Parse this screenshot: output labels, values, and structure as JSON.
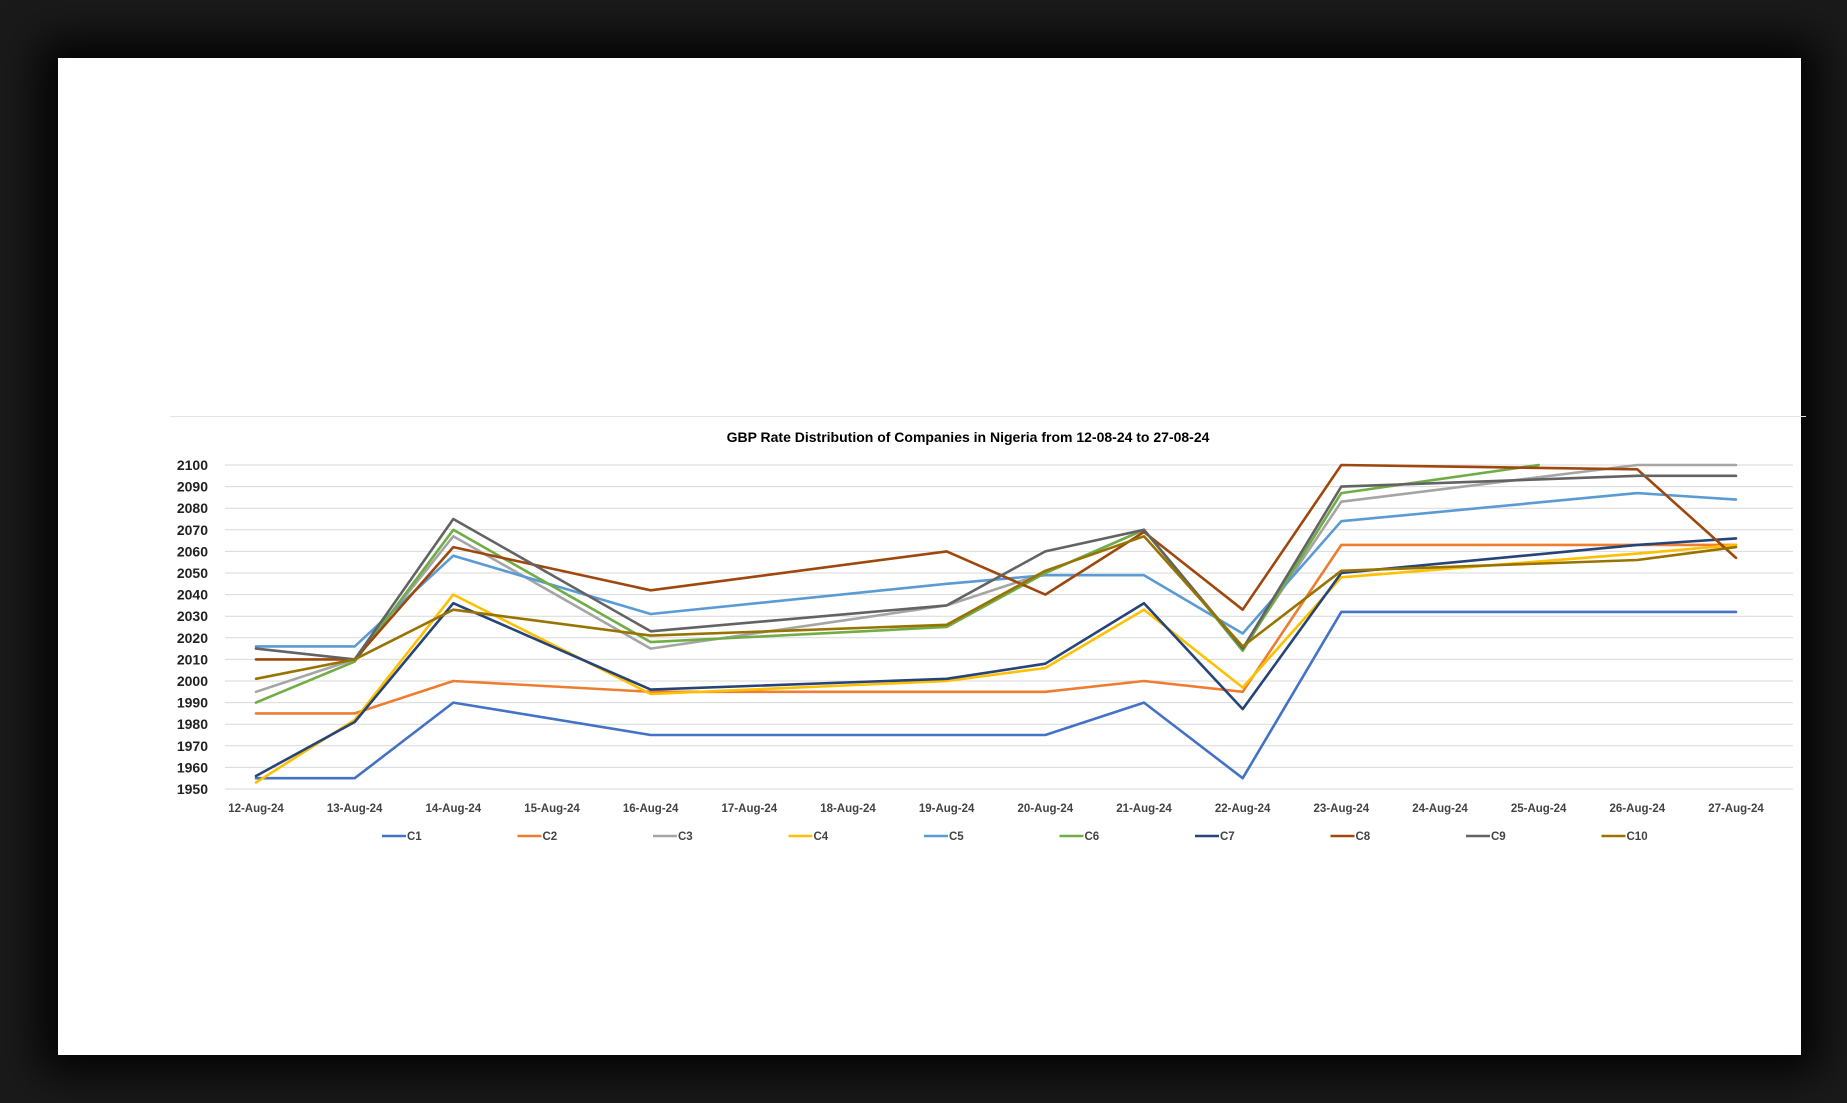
{
  "chart_data": {
    "type": "line",
    "title": "GBP Rate Distribution of Companies in Nigeria from 12-08-24 to 27-08-24",
    "xlabel": "",
    "ylabel": "",
    "ylim": [
      1950,
      2100
    ],
    "yticks": [
      1950,
      1960,
      1970,
      1980,
      1990,
      2000,
      2010,
      2020,
      2030,
      2040,
      2050,
      2060,
      2070,
      2080,
      2090,
      2100
    ],
    "grid": true,
    "legend_position": "bottom",
    "categories": [
      "12-Aug-24",
      "13-Aug-24",
      "14-Aug-24",
      "15-Aug-24",
      "16-Aug-24",
      "17-Aug-24",
      "18-Aug-24",
      "19-Aug-24",
      "20-Aug-24",
      "21-Aug-24",
      "22-Aug-24",
      "23-Aug-24",
      "24-Aug-24",
      "25-Aug-24",
      "26-Aug-24",
      "27-Aug-24"
    ],
    "series": [
      {
        "name": "C1",
        "color": "#4472C4",
        "values": [
          1955,
          1955,
          1990,
          null,
          1975,
          null,
          null,
          1975,
          1975,
          1990,
          1955,
          2032,
          null,
          null,
          null,
          2032
        ]
      },
      {
        "name": "C2",
        "color": "#ED7D31",
        "values": [
          1985,
          1985,
          2000,
          null,
          1995,
          null,
          null,
          1995,
          1995,
          2000,
          1995,
          2063,
          null,
          null,
          null,
          2063
        ]
      },
      {
        "name": "C3",
        "color": "#A5A5A5",
        "values": [
          1995,
          2010,
          2067,
          null,
          2015,
          null,
          null,
          2035,
          2050,
          2070,
          2015,
          2083,
          null,
          null,
          2100,
          2100
        ]
      },
      {
        "name": "C4",
        "color": "#FFC000",
        "values": [
          1953,
          1982,
          2040,
          null,
          1994,
          null,
          null,
          2000,
          2006,
          2033,
          1997,
          2048,
          null,
          null,
          2059,
          2063
        ]
      },
      {
        "name": "C5",
        "color": "#5B9BD5",
        "values": [
          2016,
          2016,
          2058,
          null,
          2031,
          null,
          null,
          2045,
          2049,
          2049,
          2022,
          2074,
          null,
          null,
          2087,
          2084
        ]
      },
      {
        "name": "C6",
        "color": "#70AD47",
        "values": [
          1990,
          2009,
          2070,
          null,
          2018,
          null,
          null,
          2025,
          2050,
          2070,
          2014,
          2087,
          null,
          2100,
          null,
          null
        ]
      },
      {
        "name": "C7",
        "color": "#264478",
        "values": [
          1956,
          1981,
          2036,
          null,
          1996,
          null,
          null,
          2001,
          2008,
          2036,
          1987,
          2050,
          null,
          null,
          2063,
          2066
        ]
      },
      {
        "name": "C8",
        "color": "#9E480E",
        "values": [
          2010,
          2010,
          2062,
          null,
          2042,
          null,
          null,
          2060,
          2040,
          2069,
          2033,
          2100,
          null,
          null,
          2098,
          2057
        ]
      },
      {
        "name": "C9",
        "color": "#636363",
        "values": [
          2015,
          2010,
          2075,
          null,
          2023,
          null,
          null,
          2035,
          2060,
          2070,
          2015,
          2090,
          null,
          null,
          2095,
          2095
        ]
      },
      {
        "name": "C10",
        "color": "#997300",
        "values": [
          2001,
          2010,
          2033,
          null,
          2021,
          null,
          null,
          2026,
          2051,
          2067,
          2016,
          2051,
          null,
          null,
          2056,
          2062
        ]
      }
    ]
  }
}
